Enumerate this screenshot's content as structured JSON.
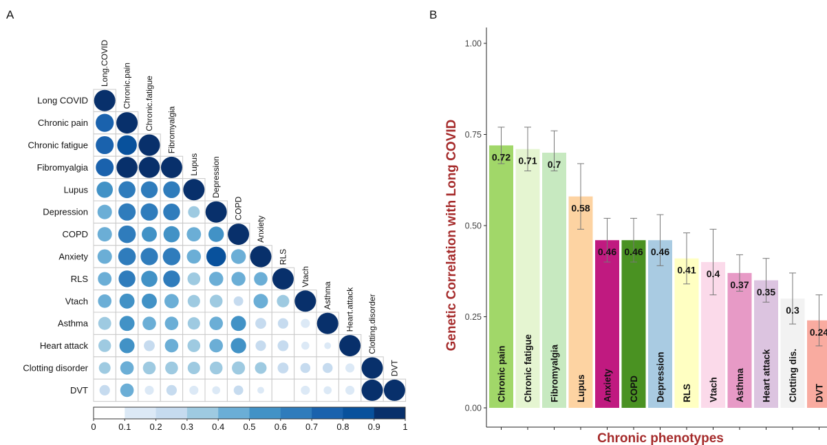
{
  "panels": {
    "a_label": "A",
    "b_label": "B"
  },
  "chart_data": [
    {
      "type": "heatmap",
      "style": "lower-triangle correlation circles",
      "row_labels": [
        "Long COVID",
        "Chronic pain",
        "Chronic fatigue",
        "Fibromyalgia",
        "Lupus",
        "Depression",
        "COPD",
        "Anxiety",
        "RLS",
        "Vtach",
        "Asthma",
        "Heart attack",
        "Clotting disorder",
        "DVT"
      ],
      "col_labels": [
        "Long.COVID",
        "Chronic.pain",
        "Chronic.fatigue",
        "Fibromyalgia",
        "Lupus",
        "Depression",
        "COPD",
        "Anxiety",
        "RLS",
        "Vtach",
        "Asthma",
        "Heart.attack",
        "Clotting.disorder",
        "DVT"
      ],
      "values": [
        [
          1.0
        ],
        [
          0.72,
          1.0
        ],
        [
          0.71,
          0.85,
          1.0
        ],
        [
          0.7,
          0.97,
          0.97,
          1.0
        ],
        [
          0.58,
          0.63,
          0.62,
          0.62,
          1.0
        ],
        [
          0.46,
          0.66,
          0.66,
          0.62,
          0.3,
          1.0
        ],
        [
          0.46,
          0.68,
          0.5,
          0.58,
          0.45,
          0.52,
          1.0
        ],
        [
          0.46,
          0.68,
          0.66,
          0.68,
          0.44,
          0.85,
          0.48,
          1.0
        ],
        [
          0.41,
          0.62,
          0.58,
          0.62,
          0.36,
          0.44,
          0.43,
          0.4,
          1.0
        ],
        [
          0.4,
          0.5,
          0.5,
          0.45,
          0.34,
          0.36,
          0.2,
          0.46,
          0.34,
          1.0
        ],
        [
          0.37,
          0.5,
          0.4,
          0.4,
          0.34,
          0.4,
          0.5,
          0.26,
          0.24,
          0.18,
          1.0
        ],
        [
          0.35,
          0.5,
          0.26,
          0.4,
          0.36,
          0.4,
          0.52,
          0.24,
          0.26,
          0.14,
          0.1,
          1.0
        ],
        [
          0.3,
          0.4,
          0.36,
          0.36,
          0.34,
          0.36,
          0.38,
          0.3,
          0.26,
          0.22,
          0.22,
          0.18,
          1.0
        ],
        [
          0.24,
          0.4,
          0.18,
          0.24,
          0.18,
          0.14,
          0.2,
          0.1,
          0.06,
          0.18,
          0.14,
          0.18,
          1.0,
          1.0
        ]
      ],
      "legend": {
        "ticks": [
          "0",
          "0.1",
          "0.2",
          "0.3",
          "0.4",
          "0.5",
          "0.6",
          "0.7",
          "0.8",
          "0.9",
          "1"
        ],
        "placement": "bottom",
        "colors": [
          "#ffffff",
          "#dce9f6",
          "#c6dbef",
          "#9ecae1",
          "#6baed6",
          "#4292c6",
          "#2f7cbc",
          "#1a62ad",
          "#08519c",
          "#08306b"
        ]
      }
    },
    {
      "type": "bar",
      "categories": [
        "Chronic pain",
        "Chronic fatigue",
        "Fibromyalgia",
        "Lupus",
        "Anxiety",
        "COPD",
        "Depression",
        "RLS",
        "Vtach",
        "Asthma",
        "Heart attack",
        "Clotting dis.",
        "DVT"
      ],
      "values": [
        0.72,
        0.71,
        0.7,
        0.58,
        0.46,
        0.46,
        0.46,
        0.41,
        0.4,
        0.37,
        0.35,
        0.3,
        0.24
      ],
      "value_labels": [
        "0.72",
        "0.71",
        "0.7",
        "0.58",
        "0.46",
        "0.46",
        "0.46",
        "0.41",
        "0.4",
        "0.37",
        "0.35",
        "0.3",
        "0.24"
      ],
      "error_low": [
        0.67,
        0.65,
        0.65,
        0.49,
        0.4,
        0.4,
        0.39,
        0.34,
        0.31,
        0.32,
        0.29,
        0.23,
        0.17
      ],
      "error_high": [
        0.77,
        0.77,
        0.76,
        0.67,
        0.52,
        0.52,
        0.53,
        0.48,
        0.49,
        0.42,
        0.41,
        0.37,
        0.31
      ],
      "colors": [
        "#a1d769",
        "#e5f5d1",
        "#c7e9c0",
        "#fdd3a2",
        "#c01a80",
        "#4a9222",
        "#a9cbe2",
        "#ffffc2",
        "#fbdaea",
        "#e79ac6",
        "#dcc4e0",
        "#f2f2f2",
        "#f9aba0"
      ],
      "ylabel": "Genetic Correlation with Long COVID",
      "xlabel": "Chronic phenotypes",
      "yticks": [
        "0.00",
        "0.25",
        "0.50",
        "0.75",
        "1.00"
      ],
      "ylim": [
        0,
        1.05
      ],
      "grid": false
    }
  ]
}
